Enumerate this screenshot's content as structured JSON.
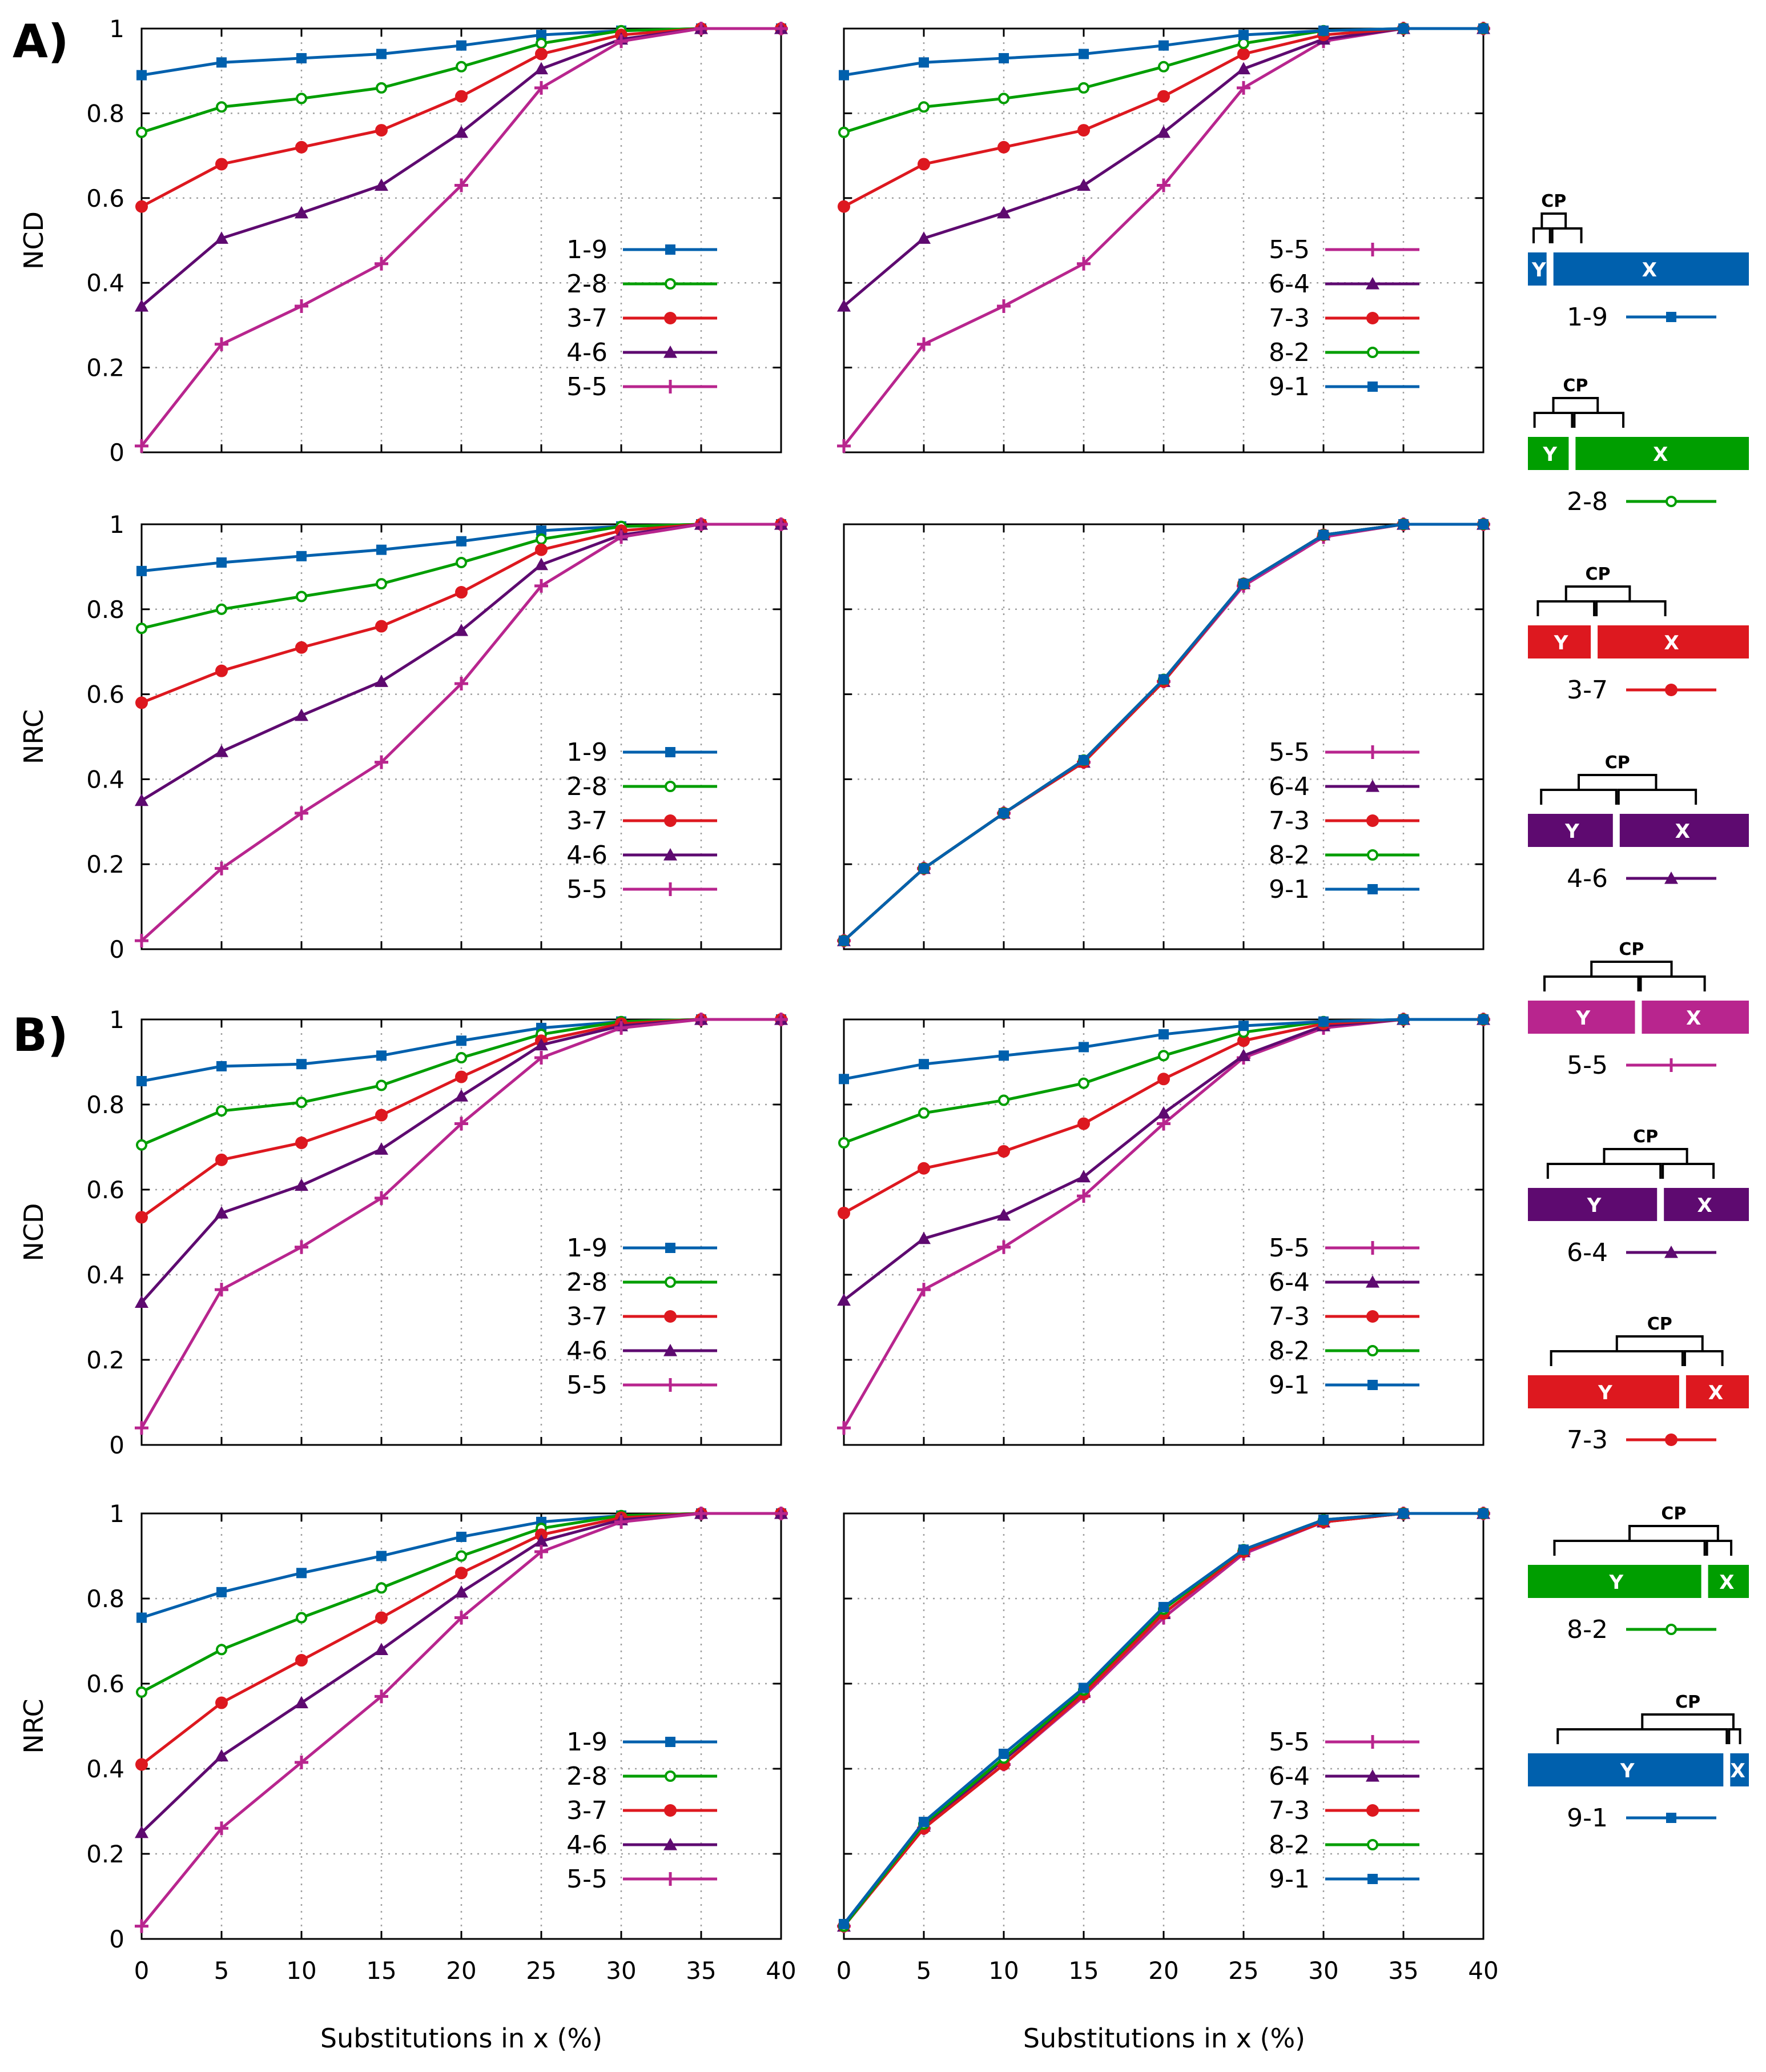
{
  "colors": {
    "1-9": "#0060ad",
    "2-8": "#009e00",
    "3-7": "#dd181f",
    "4-6": "#5e0a70",
    "5-5": "#b8258e",
    "9-1": "#0060ad",
    "8-2": "#009e00",
    "7-3": "#dd181f",
    "6-4": "#5e0a70",
    "grid": "#a0a0a0",
    "axis": "#000000"
  },
  "figure": {
    "section_labels": [
      "A)",
      "B)"
    ],
    "x_axis_label": "Substitutions in x (%)",
    "x_ticks": [
      "0",
      "5",
      "10",
      "15",
      "20",
      "25",
      "30",
      "35",
      "40"
    ],
    "y_ticks": [
      "0",
      "0.2",
      "0.4",
      "0.6",
      "0.8",
      "1"
    ]
  },
  "chart_data": [
    {
      "type": "line",
      "id": "A-NCD-left",
      "ylabel": "NCD",
      "xlabel": "Substitutions in x (%)",
      "x": [
        0,
        5,
        10,
        15,
        20,
        25,
        30,
        35,
        40
      ],
      "xlim": [
        0,
        40
      ],
      "ylim": [
        0,
        1
      ],
      "series": [
        {
          "name": "1-9",
          "marker": "square",
          "values": [
            0.89,
            0.92,
            0.93,
            0.94,
            0.96,
            0.985,
            0.995,
            1.0,
            1.0
          ]
        },
        {
          "name": "2-8",
          "marker": "circle-small",
          "values": [
            0.755,
            0.815,
            0.835,
            0.86,
            0.91,
            0.965,
            0.995,
            1.0,
            1.0
          ]
        },
        {
          "name": "3-7",
          "marker": "circle",
          "values": [
            0.58,
            0.68,
            0.72,
            0.76,
            0.84,
            0.94,
            0.985,
            1.0,
            1.0
          ]
        },
        {
          "name": "4-6",
          "marker": "triangle",
          "values": [
            0.345,
            0.505,
            0.565,
            0.63,
            0.755,
            0.905,
            0.975,
            1.0,
            1.0
          ]
        },
        {
          "name": "5-5",
          "marker": "plus",
          "values": [
            0.015,
            0.255,
            0.345,
            0.445,
            0.63,
            0.86,
            0.97,
            1.0,
            1.0
          ]
        }
      ]
    },
    {
      "type": "line",
      "id": "A-NCD-right",
      "ylabel": "",
      "xlabel": "Substitutions in x (%)",
      "x": [
        0,
        5,
        10,
        15,
        20,
        25,
        30,
        35,
        40
      ],
      "xlim": [
        0,
        40
      ],
      "ylim": [
        0,
        1
      ],
      "series": [
        {
          "name": "5-5",
          "marker": "plus",
          "values": [
            0.015,
            0.255,
            0.345,
            0.445,
            0.63,
            0.86,
            0.97,
            1.0,
            1.0
          ]
        },
        {
          "name": "6-4",
          "marker": "triangle",
          "values": [
            0.345,
            0.505,
            0.565,
            0.63,
            0.755,
            0.905,
            0.975,
            1.0,
            1.0
          ]
        },
        {
          "name": "7-3",
          "marker": "circle",
          "values": [
            0.58,
            0.68,
            0.72,
            0.76,
            0.84,
            0.94,
            0.985,
            1.0,
            1.0
          ]
        },
        {
          "name": "8-2",
          "marker": "circle-small",
          "values": [
            0.755,
            0.815,
            0.835,
            0.86,
            0.91,
            0.965,
            0.995,
            1.0,
            1.0
          ]
        },
        {
          "name": "9-1",
          "marker": "square",
          "values": [
            0.89,
            0.92,
            0.93,
            0.94,
            0.96,
            0.985,
            0.995,
            1.0,
            1.0
          ]
        }
      ]
    },
    {
      "type": "line",
      "id": "A-NRC-left",
      "ylabel": "NRC",
      "xlabel": "Substitutions in x (%)",
      "x": [
        0,
        5,
        10,
        15,
        20,
        25,
        30,
        35,
        40
      ],
      "xlim": [
        0,
        40
      ],
      "ylim": [
        0,
        1
      ],
      "series": [
        {
          "name": "1-9",
          "marker": "square",
          "values": [
            0.89,
            0.91,
            0.925,
            0.94,
            0.96,
            0.985,
            0.995,
            1.0,
            1.0
          ]
        },
        {
          "name": "2-8",
          "marker": "circle-small",
          "values": [
            0.755,
            0.8,
            0.83,
            0.86,
            0.91,
            0.965,
            0.995,
            1.0,
            1.0
          ]
        },
        {
          "name": "3-7",
          "marker": "circle",
          "values": [
            0.58,
            0.655,
            0.71,
            0.76,
            0.84,
            0.94,
            0.985,
            1.0,
            1.0
          ]
        },
        {
          "name": "4-6",
          "marker": "triangle",
          "values": [
            0.35,
            0.465,
            0.55,
            0.63,
            0.75,
            0.905,
            0.975,
            1.0,
            1.0
          ]
        },
        {
          "name": "5-5",
          "marker": "plus",
          "values": [
            0.02,
            0.19,
            0.32,
            0.44,
            0.625,
            0.855,
            0.97,
            1.0,
            1.0
          ]
        }
      ]
    },
    {
      "type": "line",
      "id": "A-NRC-right",
      "ylabel": "",
      "xlabel": "Substitutions in x (%)",
      "x": [
        0,
        5,
        10,
        15,
        20,
        25,
        30,
        35,
        40
      ],
      "xlim": [
        0,
        40
      ],
      "ylim": [
        0,
        1
      ],
      "series": [
        {
          "name": "5-5",
          "marker": "plus",
          "values": [
            0.02,
            0.19,
            0.32,
            0.44,
            0.63,
            0.855,
            0.97,
            1.0,
            1.0
          ]
        },
        {
          "name": "6-4",
          "marker": "triangle",
          "values": [
            0.02,
            0.19,
            0.32,
            0.44,
            0.63,
            0.86,
            0.975,
            1.0,
            1.0
          ]
        },
        {
          "name": "7-3",
          "marker": "circle",
          "values": [
            0.02,
            0.19,
            0.32,
            0.44,
            0.63,
            0.86,
            0.975,
            1.0,
            1.0
          ]
        },
        {
          "name": "8-2",
          "marker": "circle-small",
          "values": [
            0.02,
            0.19,
            0.32,
            0.445,
            0.635,
            0.86,
            0.975,
            1.0,
            1.0
          ]
        },
        {
          "name": "9-1",
          "marker": "square",
          "values": [
            0.02,
            0.19,
            0.32,
            0.445,
            0.635,
            0.86,
            0.975,
            1.0,
            1.0
          ]
        }
      ]
    },
    {
      "type": "line",
      "id": "B-NCD-left",
      "ylabel": "NCD",
      "xlabel": "Substitutions in x (%)",
      "x": [
        0,
        5,
        10,
        15,
        20,
        25,
        30,
        35,
        40
      ],
      "xlim": [
        0,
        40
      ],
      "ylim": [
        0,
        1
      ],
      "series": [
        {
          "name": "1-9",
          "marker": "square",
          "values": [
            0.855,
            0.89,
            0.895,
            0.915,
            0.95,
            0.98,
            0.995,
            1.0,
            1.0
          ]
        },
        {
          "name": "2-8",
          "marker": "circle-small",
          "values": [
            0.705,
            0.785,
            0.805,
            0.845,
            0.91,
            0.965,
            0.995,
            1.0,
            1.0
          ]
        },
        {
          "name": "3-7",
          "marker": "circle",
          "values": [
            0.535,
            0.67,
            0.71,
            0.775,
            0.865,
            0.95,
            0.99,
            1.0,
            1.0
          ]
        },
        {
          "name": "4-6",
          "marker": "triangle",
          "values": [
            0.335,
            0.545,
            0.61,
            0.695,
            0.82,
            0.94,
            0.985,
            1.0,
            1.0
          ]
        },
        {
          "name": "5-5",
          "marker": "plus",
          "values": [
            0.04,
            0.365,
            0.465,
            0.58,
            0.755,
            0.91,
            0.98,
            1.0,
            1.0
          ]
        }
      ]
    },
    {
      "type": "line",
      "id": "B-NCD-right",
      "ylabel": "",
      "xlabel": "Substitutions in x (%)",
      "x": [
        0,
        5,
        10,
        15,
        20,
        25,
        30,
        35,
        40
      ],
      "xlim": [
        0,
        40
      ],
      "ylim": [
        0,
        1
      ],
      "series": [
        {
          "name": "5-5",
          "marker": "plus",
          "values": [
            0.04,
            0.365,
            0.465,
            0.585,
            0.755,
            0.91,
            0.98,
            1.0,
            1.0
          ]
        },
        {
          "name": "6-4",
          "marker": "triangle",
          "values": [
            0.34,
            0.485,
            0.54,
            0.63,
            0.78,
            0.915,
            0.985,
            1.0,
            1.0
          ]
        },
        {
          "name": "7-3",
          "marker": "circle",
          "values": [
            0.545,
            0.65,
            0.69,
            0.755,
            0.86,
            0.95,
            0.99,
            1.0,
            1.0
          ]
        },
        {
          "name": "8-2",
          "marker": "circle-small",
          "values": [
            0.71,
            0.78,
            0.81,
            0.85,
            0.915,
            0.97,
            0.995,
            1.0,
            1.0
          ]
        },
        {
          "name": "9-1",
          "marker": "square",
          "values": [
            0.86,
            0.895,
            0.915,
            0.935,
            0.965,
            0.985,
            0.995,
            1.0,
            1.0
          ]
        }
      ]
    },
    {
      "type": "line",
      "id": "B-NRC-left",
      "ylabel": "NRC",
      "xlabel": "Substitutions in x (%)",
      "x": [
        0,
        5,
        10,
        15,
        20,
        25,
        30,
        35,
        40
      ],
      "xlim": [
        0,
        40
      ],
      "ylim": [
        0,
        1
      ],
      "series": [
        {
          "name": "1-9",
          "marker": "square",
          "values": [
            0.755,
            0.815,
            0.86,
            0.9,
            0.945,
            0.98,
            0.995,
            1.0,
            1.0
          ]
        },
        {
          "name": "2-8",
          "marker": "circle-small",
          "values": [
            0.58,
            0.68,
            0.755,
            0.825,
            0.9,
            0.965,
            0.995,
            1.0,
            1.0
          ]
        },
        {
          "name": "3-7",
          "marker": "circle",
          "values": [
            0.41,
            0.555,
            0.655,
            0.755,
            0.86,
            0.95,
            0.99,
            1.0,
            1.0
          ]
        },
        {
          "name": "4-6",
          "marker": "triangle",
          "values": [
            0.25,
            0.43,
            0.555,
            0.68,
            0.815,
            0.935,
            0.985,
            1.0,
            1.0
          ]
        },
        {
          "name": "5-5",
          "marker": "plus",
          "values": [
            0.03,
            0.26,
            0.415,
            0.57,
            0.755,
            0.91,
            0.98,
            1.0,
            1.0
          ]
        }
      ]
    },
    {
      "type": "line",
      "id": "B-NRC-right",
      "ylabel": "",
      "xlabel": "Substitutions in x (%)",
      "x": [
        0,
        5,
        10,
        15,
        20,
        25,
        30,
        35,
        40
      ],
      "xlim": [
        0,
        40
      ],
      "ylim": [
        0,
        1
      ],
      "series": [
        {
          "name": "5-5",
          "marker": "plus",
          "values": [
            0.03,
            0.26,
            0.41,
            0.57,
            0.755,
            0.905,
            0.98,
            1.0,
            1.0
          ]
        },
        {
          "name": "6-4",
          "marker": "triangle",
          "values": [
            0.03,
            0.265,
            0.42,
            0.58,
            0.765,
            0.91,
            0.98,
            1.0,
            1.0
          ]
        },
        {
          "name": "7-3",
          "marker": "circle",
          "values": [
            0.03,
            0.26,
            0.41,
            0.575,
            0.765,
            0.91,
            0.98,
            1.0,
            1.0
          ]
        },
        {
          "name": "8-2",
          "marker": "circle-small",
          "values": [
            0.03,
            0.27,
            0.425,
            0.585,
            0.775,
            0.915,
            0.985,
            1.0,
            1.0
          ]
        },
        {
          "name": "9-1",
          "marker": "square",
          "values": [
            0.035,
            0.275,
            0.435,
            0.59,
            0.78,
            0.915,
            0.985,
            1.0,
            1.0
          ]
        }
      ]
    }
  ],
  "key_diagrams": [
    {
      "name": "1-9",
      "marker": "square",
      "y_label": "Y",
      "x_label": "X",
      "cp_label": "CP",
      "y_fraction": 0.1
    },
    {
      "name": "2-8",
      "marker": "circle-small",
      "y_label": "Y",
      "x_label": "X",
      "cp_label": "CP",
      "y_fraction": 0.2
    },
    {
      "name": "3-7",
      "marker": "circle",
      "y_label": "Y",
      "x_label": "X",
      "cp_label": "CP",
      "y_fraction": 0.3
    },
    {
      "name": "4-6",
      "marker": "triangle",
      "y_label": "Y",
      "x_label": "X",
      "cp_label": "CP",
      "y_fraction": 0.4
    },
    {
      "name": "5-5",
      "marker": "plus",
      "y_label": "Y",
      "x_label": "X",
      "cp_label": "CP",
      "y_fraction": 0.5
    },
    {
      "name": "6-4",
      "marker": "triangle",
      "y_label": "Y",
      "x_label": "X",
      "cp_label": "CP",
      "y_fraction": 0.6
    },
    {
      "name": "7-3",
      "marker": "circle",
      "y_label": "Y",
      "x_label": "X",
      "cp_label": "CP",
      "y_fraction": 0.7
    },
    {
      "name": "8-2",
      "marker": "circle-small",
      "y_label": "Y",
      "x_label": "X",
      "cp_label": "CP",
      "y_fraction": 0.8
    },
    {
      "name": "9-1",
      "marker": "square",
      "y_label": "Y",
      "x_label": "X",
      "cp_label": "CP",
      "y_fraction": 0.9
    }
  ]
}
